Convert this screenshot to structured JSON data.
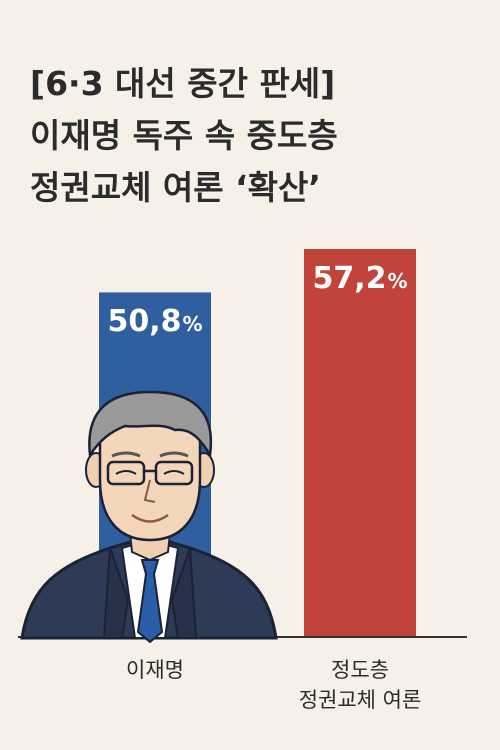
{
  "title": {
    "line1": "[6·3 대선 중간 판세]",
    "line2": "이재명 독주 속 중도층",
    "line3": "정권교체 여론 ‘확산’"
  },
  "chart_data": {
    "type": "bar",
    "categories": [
      "이재명",
      "정도층 정권교체 여론"
    ],
    "category_lines": [
      [
        "이재명"
      ],
      [
        "정도층",
        "정권교체 여론"
      ]
    ],
    "values": [
      50.8,
      57.2
    ],
    "value_labels": [
      "50,8",
      "57,2"
    ],
    "unit": "%",
    "colors": [
      "#2f5f9e",
      "#c0443c"
    ],
    "ylim": [
      0,
      60
    ],
    "grid": false,
    "legend": "none"
  }
}
